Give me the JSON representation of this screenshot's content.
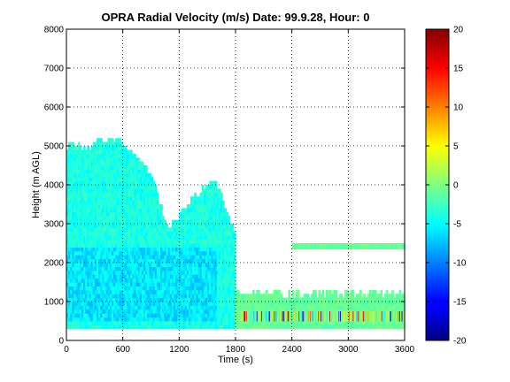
{
  "chart_data": {
    "type": "heatmap",
    "title": "OPRA Radial Velocity (m/s)  Date: 99.9.28, Hour: 0",
    "xlabel": "Time (s)",
    "ylabel": "Height (m AGL)",
    "xlim": [
      0,
      3600
    ],
    "ylim": [
      0,
      8000
    ],
    "xticks": [
      0,
      600,
      1200,
      1800,
      2400,
      3000,
      3600
    ],
    "yticks": [
      0,
      1000,
      2000,
      3000,
      4000,
      5000,
      6000,
      7000,
      8000
    ],
    "grid": true,
    "colormap": "jet",
    "colorbar": {
      "range": [
        -20,
        20
      ],
      "ticks": [
        -20,
        -15,
        -10,
        -5,
        0,
        5,
        10,
        15,
        20
      ]
    },
    "regions": [
      {
        "x": [
          0,
          1800
        ],
        "y_bottom": 300,
        "top": [
          4900,
          5000,
          4950,
          5000,
          4850,
          4950,
          5100,
          5150,
          5050,
          5200,
          5150,
          5100,
          5000,
          4900,
          4800,
          4650,
          4500,
          4300,
          4100,
          3650,
          3200,
          2850,
          2950,
          3100,
          3300,
          3450,
          3600,
          3700,
          3800,
          3950,
          4050,
          3950,
          3700,
          3350,
          3000,
          2700
        ],
        "mean_velocity": -4
      },
      {
        "x": [
          0,
          1600
        ],
        "y": [
          500,
          2400
        ],
        "mean_velocity": -6
      },
      {
        "x": [
          1800,
          3600
        ],
        "y": [
          300,
          1300
        ],
        "mean_velocity": -1
      },
      {
        "x": [
          2400,
          3600
        ],
        "y": [
          2350,
          2500
        ],
        "mean_velocity": -1
      },
      {
        "x": [
          1800,
          3600
        ],
        "y": [
          500,
          750
        ],
        "mean_velocity": 0,
        "note": "mixed band with values from -20 to 20"
      }
    ]
  }
}
